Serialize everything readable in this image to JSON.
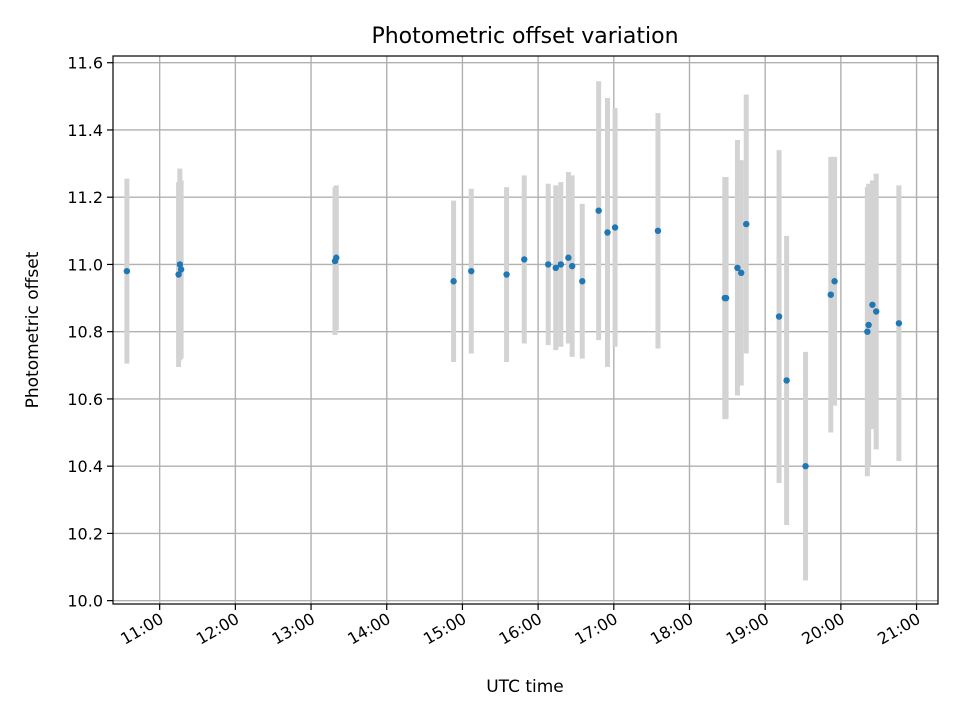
{
  "chart_data": {
    "type": "scatter",
    "title": "Photometric offset variation",
    "xlabel": "UTC time",
    "ylabel": "Photometric offset",
    "xlim": [
      "10:23",
      "21:17"
    ],
    "ylim": [
      9.99,
      11.62
    ],
    "x_ticks": [
      "11:00",
      "12:00",
      "13:00",
      "14:00",
      "15:00",
      "16:00",
      "17:00",
      "18:00",
      "19:00",
      "20:00",
      "21:00"
    ],
    "y_ticks": [
      10.0,
      10.2,
      10.4,
      10.6,
      10.8,
      11.0,
      11.2,
      11.4,
      11.6
    ],
    "y_tick_labels": [
      "10.0",
      "10.2",
      "10.4",
      "10.6",
      "10.8",
      "11.0",
      "11.2",
      "11.4",
      "11.6"
    ],
    "grid": true,
    "marker_color": "#1f77b4",
    "errorbar_color": "#d3d3d3",
    "points": [
      {
        "t": "10:34",
        "y": 10.98,
        "err": 0.275
      },
      {
        "t": "11:15",
        "y": 10.97,
        "err": 0.275
      },
      {
        "t": "11:16",
        "y": 11.0,
        "err": 0.285
      },
      {
        "t": "11:17",
        "y": 10.985,
        "err": 0.265
      },
      {
        "t": "13:19",
        "y": 11.01,
        "err": 0.22
      },
      {
        "t": "13:20",
        "y": 11.02,
        "err": 0.215
      },
      {
        "t": "14:53",
        "y": 10.95,
        "err": 0.24
      },
      {
        "t": "15:07",
        "y": 10.98,
        "err": 0.245
      },
      {
        "t": "15:35",
        "y": 10.97,
        "err": 0.26
      },
      {
        "t": "15:49",
        "y": 11.015,
        "err": 0.25
      },
      {
        "t": "16:08",
        "y": 11.0,
        "err": 0.24
      },
      {
        "t": "16:14",
        "y": 10.99,
        "err": 0.245
      },
      {
        "t": "16:18",
        "y": 11.0,
        "err": 0.245
      },
      {
        "t": "16:24",
        "y": 11.02,
        "err": 0.255
      },
      {
        "t": "16:27",
        "y": 10.995,
        "err": 0.27
      },
      {
        "t": "16:35",
        "y": 10.95,
        "err": 0.23
      },
      {
        "t": "16:48",
        "y": 11.16,
        "err": 0.385
      },
      {
        "t": "16:55",
        "y": 11.095,
        "err": 0.4
      },
      {
        "t": "17:01",
        "y": 11.11,
        "err": 0.355
      },
      {
        "t": "17:35",
        "y": 11.1,
        "err": 0.35
      },
      {
        "t": "18:28",
        "y": 10.9,
        "err": 0.36
      },
      {
        "t": "18:29",
        "y": 10.9,
        "err": 0.36
      },
      {
        "t": "18:38",
        "y": 10.99,
        "err": 0.38
      },
      {
        "t": "18:41",
        "y": 10.975,
        "err": 0.335
      },
      {
        "t": "18:45",
        "y": 11.12,
        "err": 0.385
      },
      {
        "t": "19:11",
        "y": 10.845,
        "err": 0.495
      },
      {
        "t": "19:17",
        "y": 10.655,
        "err": 0.43
      },
      {
        "t": "19:32",
        "y": 10.4,
        "err": 0.34
      },
      {
        "t": "19:52",
        "y": 10.91,
        "err": 0.41
      },
      {
        "t": "19:55",
        "y": 10.95,
        "err": 0.37
      },
      {
        "t": "20:21",
        "y": 10.8,
        "err": 0.43
      },
      {
        "t": "20:22",
        "y": 10.82,
        "err": 0.42
      },
      {
        "t": "20:25",
        "y": 10.88,
        "err": 0.37
      },
      {
        "t": "20:28",
        "y": 10.86,
        "err": 0.41
      },
      {
        "t": "20:46",
        "y": 10.825,
        "err": 0.41
      }
    ]
  }
}
